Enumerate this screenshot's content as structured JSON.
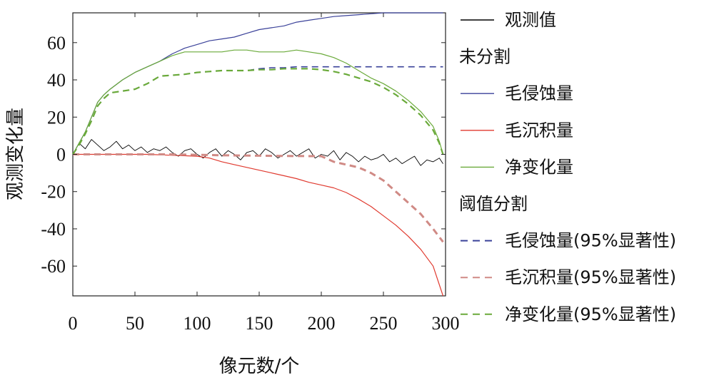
{
  "chart_data": {
    "type": "line",
    "title": "",
    "xlabel": "像元数/个",
    "ylabel": "观测变化量",
    "xlim": [
      0,
      300
    ],
    "ylim": [
      -76,
      76
    ],
    "xticks": [
      0,
      50,
      100,
      150,
      200,
      250,
      300
    ],
    "yticks": [
      -60,
      -40,
      -20,
      0,
      20,
      40,
      60
    ],
    "grid": false,
    "legend_position": "right",
    "legend_groups": [
      {
        "heading": "",
        "entries": [
          "观测值"
        ]
      },
      {
        "heading": "未分割",
        "entries": [
          "毛侵蚀量",
          "毛沉积量",
          "净变化量"
        ]
      },
      {
        "heading": "阈值分割",
        "entries": [
          "毛侵蚀量(95%显著性)",
          "毛沉积量(95%显著性)",
          "净变化量(95%显著性)"
        ]
      }
    ],
    "series": [
      {
        "name": "观测值",
        "color": "#000000",
        "style": "solid",
        "width": 0.9,
        "x": [
          0,
          5,
          10,
          15,
          20,
          25,
          30,
          35,
          40,
          45,
          50,
          55,
          60,
          65,
          70,
          75,
          80,
          85,
          90,
          95,
          100,
          105,
          110,
          115,
          120,
          125,
          130,
          135,
          140,
          145,
          150,
          155,
          160,
          165,
          170,
          175,
          180,
          185,
          190,
          195,
          200,
          205,
          210,
          215,
          220,
          225,
          230,
          235,
          240,
          245,
          250,
          255,
          260,
          265,
          270,
          275,
          280,
          285,
          290,
          295,
          298
        ],
        "y": [
          0,
          6,
          3,
          8,
          5,
          2,
          4,
          7,
          3,
          5,
          2,
          4,
          1,
          3,
          2,
          4,
          1,
          -1,
          2,
          3,
          0,
          -2,
          1,
          3,
          -1,
          2,
          0,
          -3,
          1,
          2,
          -1,
          3,
          1,
          -2,
          0,
          2,
          -1,
          1,
          3,
          -2,
          0,
          -1,
          2,
          -3,
          1,
          -1,
          -4,
          -1,
          -3,
          -2,
          0,
          -4,
          -2,
          -5,
          -3,
          -1,
          -6,
          -3,
          -4,
          -2,
          -5
        ]
      },
      {
        "name": "毛侵蚀量",
        "color": "#3a4199",
        "style": "solid",
        "width": 1.2,
        "x": [
          0,
          5,
          10,
          15,
          20,
          25,
          30,
          40,
          50,
          60,
          70,
          80,
          90,
          100,
          110,
          120,
          130,
          140,
          150,
          160,
          170,
          180,
          190,
          200,
          210,
          220,
          230,
          240,
          250,
          260,
          270,
          280,
          290,
          298
        ],
        "y": [
          0,
          6,
          12,
          20,
          28,
          32,
          35,
          40,
          44,
          47,
          50,
          54,
          57,
          59,
          61,
          62,
          63,
          65,
          67,
          68,
          69,
          71,
          72,
          73,
          74,
          74.5,
          75,
          75.5,
          76,
          76,
          76,
          76,
          76,
          76
        ]
      },
      {
        "name": "毛沉积量",
        "color": "#e03a2f",
        "style": "solid",
        "width": 1.2,
        "x": [
          0,
          20,
          40,
          60,
          80,
          100,
          110,
          120,
          130,
          140,
          150,
          160,
          170,
          180,
          190,
          200,
          210,
          220,
          230,
          240,
          250,
          260,
          270,
          280,
          290,
          298
        ],
        "y": [
          0,
          0,
          0,
          0,
          -0.5,
          -1,
          -2,
          -4,
          -5.5,
          -7,
          -8.5,
          -10,
          -11.5,
          -13,
          -15,
          -16.5,
          -18,
          -20.5,
          -24,
          -28,
          -33,
          -38,
          -44,
          -51,
          -60,
          -76
        ]
      },
      {
        "name": "净变化量",
        "color": "#6aaa3a",
        "style": "solid",
        "width": 1.2,
        "x": [
          0,
          5,
          10,
          15,
          20,
          25,
          30,
          40,
          50,
          60,
          70,
          80,
          90,
          100,
          110,
          120,
          130,
          140,
          150,
          160,
          170,
          180,
          190,
          200,
          210,
          220,
          230,
          240,
          250,
          260,
          270,
          280,
          290,
          295,
          298
        ],
        "y": [
          0,
          6,
          12,
          20,
          28,
          32,
          35,
          40,
          44,
          47,
          50,
          53,
          55,
          55,
          55,
          55,
          56,
          56,
          55,
          55,
          55,
          56,
          55,
          54,
          52,
          49,
          45,
          41,
          38,
          34,
          29,
          23,
          15,
          7,
          0
        ]
      },
      {
        "name": "毛侵蚀量(95%显著性)",
        "color": "#3a4199",
        "style": "dashed",
        "width": 1.6,
        "x": [
          0,
          5,
          10,
          15,
          20,
          25,
          30,
          40,
          50,
          60,
          70,
          80,
          90,
          100,
          110,
          120,
          130,
          140,
          150,
          160,
          170,
          180,
          190,
          200,
          220,
          240,
          260,
          280,
          298
        ],
        "y": [
          0,
          5,
          11,
          18,
          26,
          30,
          33,
          34,
          35,
          38,
          42,
          42.5,
          43,
          44,
          44.5,
          45,
          45,
          45,
          46,
          46.5,
          46.5,
          47,
          47,
          47,
          47,
          47,
          47,
          47,
          47
        ]
      },
      {
        "name": "毛沉积量(95%显著性)",
        "color": "#d08a85",
        "style": "dashed",
        "width": 3,
        "x": [
          0,
          40,
          80,
          120,
          160,
          200,
          205,
          210,
          220,
          230,
          240,
          250,
          260,
          270,
          280,
          290,
          298
        ],
        "y": [
          0,
          0,
          0,
          -0.5,
          -0.8,
          -1,
          -2.5,
          -4,
          -5.5,
          -7,
          -10,
          -14,
          -20,
          -26,
          -32,
          -40,
          -47
        ]
      },
      {
        "name": "净变化量(95%显著性)",
        "color": "#6aaa3a",
        "style": "dashed",
        "width": 2.2,
        "x": [
          0,
          5,
          10,
          15,
          20,
          25,
          30,
          40,
          50,
          60,
          70,
          80,
          90,
          100,
          110,
          120,
          130,
          140,
          150,
          160,
          170,
          180,
          190,
          200,
          210,
          220,
          230,
          240,
          250,
          260,
          270,
          280,
          290,
          295,
          298
        ],
        "y": [
          0,
          5,
          11,
          18,
          26,
          30,
          33,
          34,
          35,
          38,
          42,
          42.5,
          43,
          44,
          44.5,
          45,
          45,
          45,
          45.5,
          45.5,
          46,
          46,
          46,
          45.5,
          44.5,
          43,
          41,
          39,
          36,
          32,
          27,
          21,
          13,
          6,
          0
        ]
      }
    ]
  }
}
